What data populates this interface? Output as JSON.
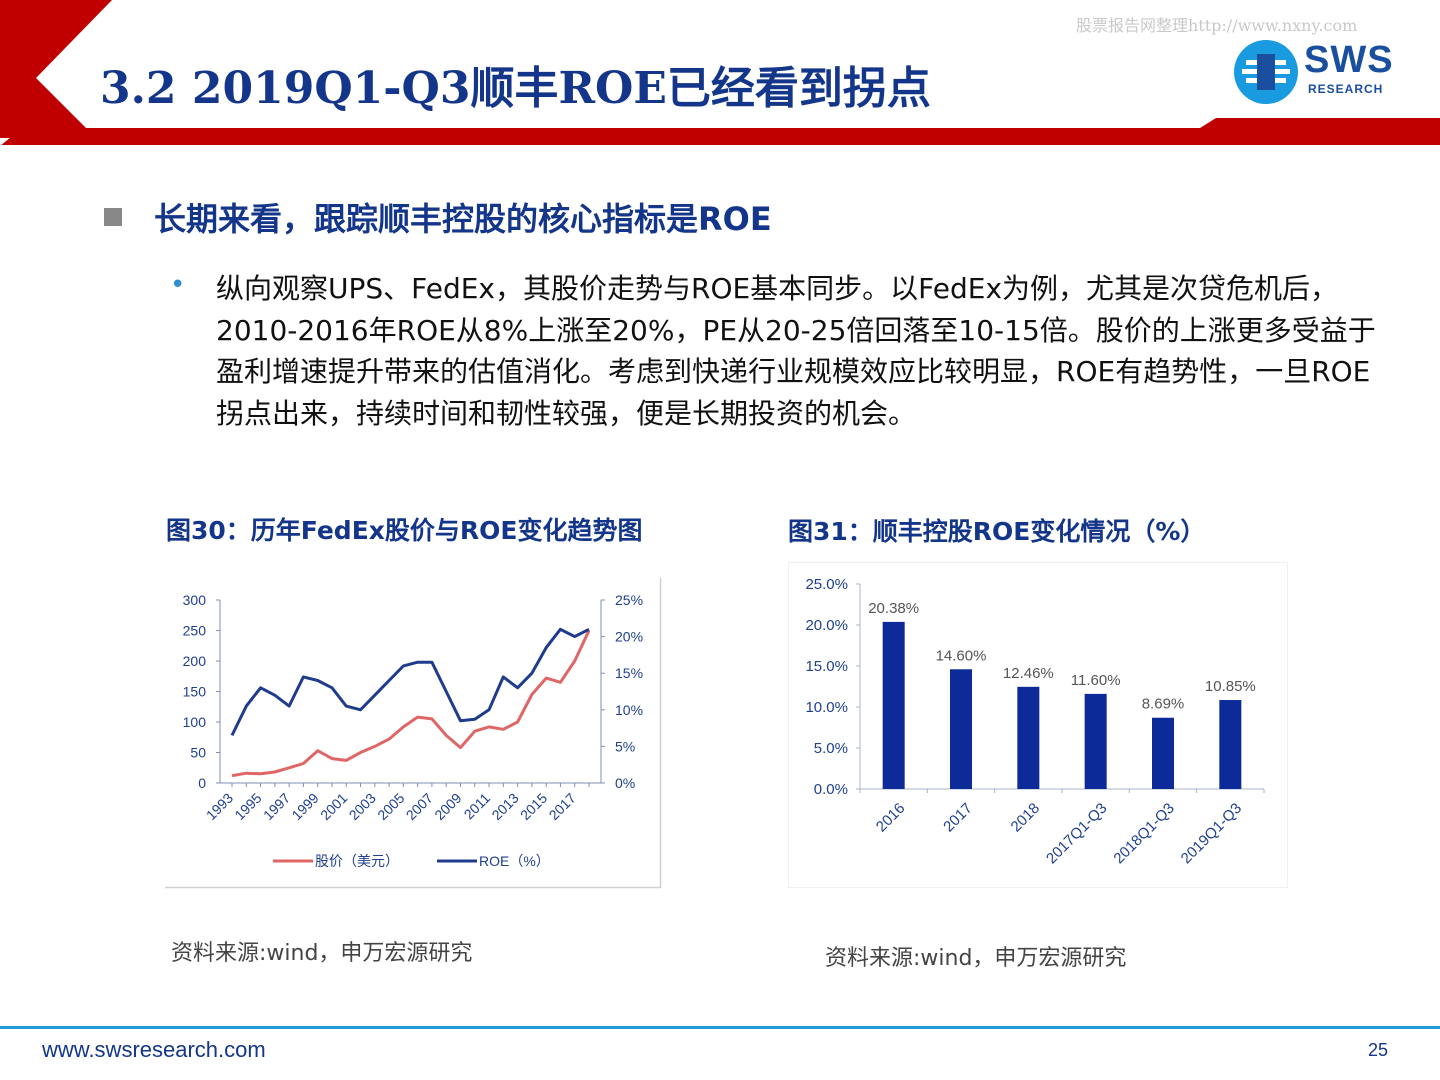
{
  "header": {
    "title": "3.2 2019Q1-Q3顺丰ROE已经看到拐点",
    "watermark": "股票报告网整理http://www.nxny.com",
    "logo_text": "SWS",
    "logo_sub": "RESEARCH"
  },
  "content": {
    "lead": "长期来看，跟踪顺丰控股的核心指标是ROE",
    "bullet_symbol": "•",
    "paragraph": "纵向观察UPS、FedEx，其股价走势与ROE基本同步。以FedEx为例，尤其是次贷危机后，2010-2016年ROE从8%上涨至20%，PE从20-25倍回落至10-15倍。股价的上涨更多受益于盈利增速提升带来的估值消化。考虑到快递行业规模效应比较明显，ROE有趋势性，一旦ROE拐点出来，持续时间和韧性较强，便是长期投资的机会。"
  },
  "figures": {
    "fig30_caption": "图30：历年FedEx股价与ROE变化趋势图",
    "fig31_caption": "图31：顺丰控股ROE变化情况（%）",
    "fig30_source": "资料来源:wind，申万宏源研究",
    "fig31_source": "资料来源:wind，申万宏源研究"
  },
  "colors": {
    "title_blue": "#14368a",
    "header_red": "#c00000",
    "price_line": "#e06666",
    "roe_line": "#1f3b8c",
    "bar": "#0c2a98",
    "footer_rule": "#1f9bd6"
  },
  "chart_data": [
    {
      "type": "line",
      "title": "",
      "x": [
        1993,
        1994,
        1995,
        1996,
        1997,
        1998,
        1999,
        2000,
        2001,
        2002,
        2003,
        2004,
        2005,
        2006,
        2007,
        2008,
        2009,
        2010,
        2011,
        2012,
        2013,
        2014,
        2015,
        2016,
        2017,
        2018
      ],
      "x_tick_labels": [
        "1993",
        "1995",
        "1997",
        "1999",
        "2001",
        "2003",
        "2005",
        "2007",
        "2009",
        "2011",
        "2013",
        "2015",
        "2017"
      ],
      "y_left_ticks": [
        "0",
        "50",
        "100",
        "150",
        "200",
        "250",
        "300"
      ],
      "y_right_ticks": [
        "0%",
        "5%",
        "10%",
        "15%",
        "20%",
        "25%"
      ],
      "ylim_left": [
        0,
        300
      ],
      "ylim_right": [
        0,
        25
      ],
      "grid": false,
      "legend": "bottom",
      "series": [
        {
          "name": "股价（美元）",
          "axis": "left",
          "values": [
            12,
            16,
            15,
            18,
            25,
            32,
            53,
            40,
            37,
            50,
            60,
            72,
            92,
            108,
            105,
            78,
            58,
            85,
            92,
            88,
            100,
            145,
            172,
            165,
            200,
            250
          ]
        },
        {
          "name": "ROE（%）",
          "axis": "right",
          "values": [
            6.5,
            10.5,
            13,
            12,
            10.5,
            14.5,
            14,
            13,
            10.5,
            10,
            12,
            14,
            16,
            16.5,
            16.5,
            12.5,
            8.5,
            8.7,
            10,
            14.5,
            13,
            15,
            18.5,
            21,
            20,
            21
          ]
        }
      ]
    },
    {
      "type": "bar",
      "title": "",
      "categories": [
        "2016",
        "2017",
        "2018",
        "2017Q1-Q3",
        "2018Q1-Q3",
        "2019Q1-Q3"
      ],
      "values": [
        20.38,
        14.6,
        12.46,
        11.6,
        8.69,
        10.85
      ],
      "data_labels": [
        "20.38%",
        "14.60%",
        "12.46%",
        "11.60%",
        "8.69%",
        "10.85%"
      ],
      "y_ticks": [
        "0.0%",
        "5.0%",
        "10.0%",
        "15.0%",
        "20.0%",
        "25.0%"
      ],
      "ylim": [
        0,
        25
      ],
      "grid": false
    }
  ],
  "footer": {
    "url": "www.swsresearch.com",
    "page": "25"
  }
}
